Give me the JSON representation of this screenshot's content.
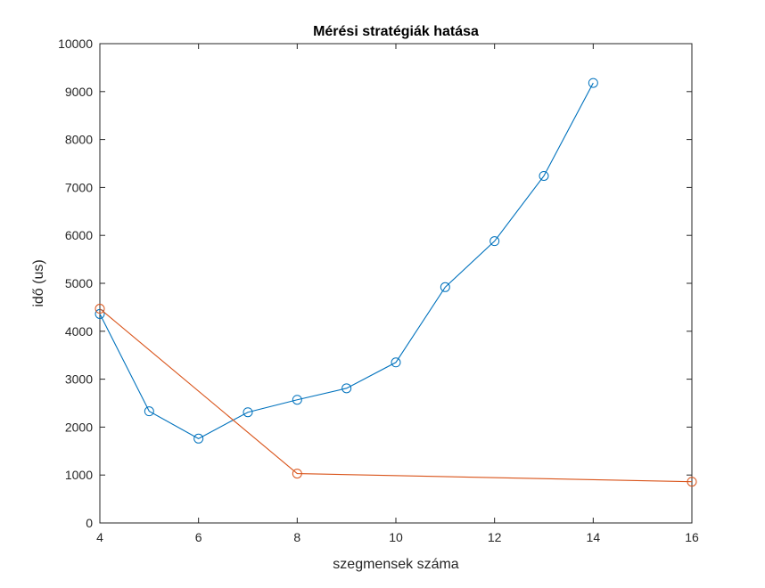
{
  "chart_data": {
    "type": "line",
    "title": "Mérési stratégiák hatása",
    "xlabel": "szegmensek száma",
    "ylabel": "idő (us)",
    "xlim": [
      4,
      16
    ],
    "ylim": [
      0,
      10000
    ],
    "xticks": [
      4,
      6,
      8,
      10,
      12,
      14,
      16
    ],
    "yticks": [
      0,
      1000,
      2000,
      3000,
      4000,
      5000,
      6000,
      7000,
      8000,
      9000,
      10000
    ],
    "grid": false,
    "marker": "circle",
    "series": [
      {
        "color": "#0072bd",
        "x": [
          4,
          5,
          6,
          7,
          8,
          9,
          10,
          11,
          12,
          13,
          14
        ],
        "y": [
          4360,
          2330,
          1760,
          2310,
          2570,
          2810,
          3350,
          4920,
          5880,
          7240,
          9180
        ]
      },
      {
        "color": "#d95319",
        "x": [
          4,
          8,
          16
        ],
        "y": [
          4470,
          1030,
          860
        ]
      }
    ]
  }
}
